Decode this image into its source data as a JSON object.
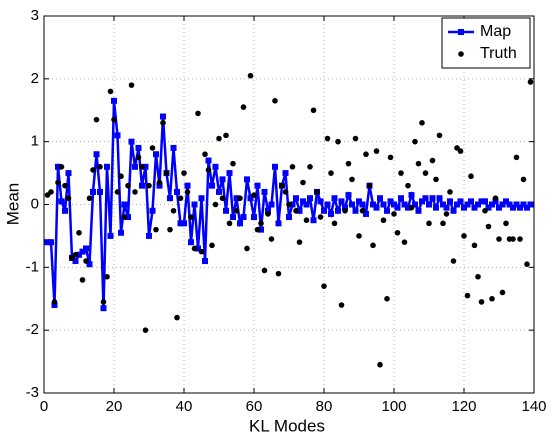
{
  "chart_data": {
    "type": "line",
    "xlabel": "KL Modes",
    "ylabel": "Mean",
    "x": [
      1,
      2,
      3,
      4,
      5,
      6,
      7,
      8,
      9,
      10,
      11,
      12,
      13,
      14,
      15,
      16,
      17,
      18,
      19,
      20,
      21,
      22,
      23,
      24,
      25,
      26,
      27,
      28,
      29,
      30,
      31,
      32,
      33,
      34,
      35,
      36,
      37,
      38,
      39,
      40,
      41,
      42,
      43,
      44,
      45,
      46,
      47,
      48,
      49,
      50,
      51,
      52,
      53,
      54,
      55,
      56,
      57,
      58,
      59,
      60,
      61,
      62,
      63,
      64,
      65,
      66,
      67,
      68,
      69,
      70,
      71,
      72,
      73,
      74,
      75,
      76,
      77,
      78,
      79,
      80,
      81,
      82,
      83,
      84,
      85,
      86,
      87,
      88,
      89,
      90,
      91,
      92,
      93,
      94,
      95,
      96,
      97,
      98,
      99,
      100,
      101,
      102,
      103,
      104,
      105,
      106,
      107,
      108,
      109,
      110,
      111,
      112,
      113,
      114,
      115,
      116,
      117,
      118,
      119,
      120,
      121,
      122,
      123,
      124,
      125,
      126,
      127,
      128,
      129,
      130,
      131,
      132,
      133,
      134,
      135,
      136,
      137,
      138,
      139
    ],
    "series": [
      {
        "name": "Map",
        "color": "#0000ff",
        "style": "line-square",
        "values": [
          -0.6,
          -0.6,
          -1.6,
          0.6,
          0.05,
          -0.1,
          0.5,
          -0.85,
          -0.9,
          -0.8,
          -0.75,
          -0.7,
          -0.95,
          0.2,
          0.8,
          0.2,
          -1.65,
          0.6,
          -0.5,
          1.65,
          1.1,
          -0.45,
          0.0,
          -0.2,
          1.0,
          0.6,
          0.9,
          0.3,
          0.6,
          -0.5,
          -0.1,
          0.8,
          0.3,
          1.4,
          0.5,
          0.1,
          0.9,
          0.2,
          -0.3,
          -0.3,
          0.3,
          -0.6,
          0.0,
          -0.7,
          0.1,
          -0.9,
          0.7,
          0.3,
          0.6,
          0.2,
          0.4,
          -0.1,
          0.5,
          -0.2,
          0.1,
          -0.3,
          -0.2,
          0.4,
          0.1,
          -0.2,
          0.3,
          -0.4,
          0.2,
          -0.1,
          0.0,
          0.6,
          -0.3,
          0.3,
          0.5,
          -0.2,
          0.0,
          0.1,
          -0.1,
          0.05,
          0.0,
          0.1,
          -0.25,
          0.2,
          0.05,
          -0.1,
          0.0,
          -0.15,
          0.1,
          -0.1,
          0.05,
          -0.05,
          0.15,
          0.0,
          -0.1,
          0.05,
          0.0,
          -0.15,
          0.3,
          0.0,
          -0.05,
          0.1,
          0.0,
          -0.1,
          0.05,
          0.0,
          -0.05,
          0.1,
          0.0,
          -0.05,
          0.15,
          0.0,
          -0.1,
          0.05,
          0.1,
          0.0,
          0.1,
          -0.05,
          0.1,
          0.0,
          -0.05,
          0.05,
          -0.1,
          0.0,
          0.05,
          -0.05,
          0.0,
          0.05,
          -0.05,
          0.0,
          0.05,
          0.05,
          -0.05,
          0.0,
          0.05,
          -0.05,
          0.0,
          0.05,
          0.0,
          -0.05,
          0.0,
          -0.05,
          0.0,
          -0.05,
          0.0
        ]
      },
      {
        "name": "Truth",
        "color": "#000000",
        "style": "dot",
        "values": [
          0.15,
          0.2,
          -1.55,
          0.35,
          0.6,
          0.3,
          0.1,
          -0.85,
          -0.8,
          -0.45,
          -1.2,
          -0.9,
          0.1,
          0.55,
          1.35,
          0.6,
          -1.55,
          -1.15,
          1.8,
          1.35,
          0.2,
          0.45,
          -0.2,
          0.3,
          1.9,
          0.2,
          0.75,
          0.6,
          -2.0,
          0.3,
          0.9,
          -0.4,
          0.35,
          1.3,
          0.5,
          -0.4,
          -0.1,
          -1.8,
          0.1,
          0.5,
          0.2,
          -0.2,
          -0.7,
          1.45,
          -0.75,
          0.8,
          0.55,
          -0.65,
          0.0,
          1.05,
          0.1,
          1.1,
          -0.3,
          0.65,
          -0.1,
          0.1,
          1.55,
          -0.7,
          2.05,
          0.15,
          -0.4,
          -0.3,
          -1.05,
          -0.15,
          -0.55,
          1.65,
          -1.1,
          0.3,
          0.2,
          0.0,
          0.6,
          -0.1,
          -0.6,
          0.35,
          -0.25,
          0.6,
          1.5,
          0.2,
          -0.2,
          -1.3,
          1.05,
          0.5,
          -0.3,
          1.0,
          -1.6,
          -0.1,
          0.65,
          0.4,
          1.05,
          -0.5,
          -0.1,
          0.8,
          0.3,
          -0.65,
          0.85,
          -2.55,
          -0.25,
          -1.5,
          0.75,
          -0.15,
          -0.45,
          0.5,
          -0.6,
          0.3,
          -0.05,
          1.0,
          0.65,
          1.3,
          0.5,
          -0.3,
          0.7,
          0.4,
          1.1,
          -0.3,
          -0.15,
          0.2,
          -0.9,
          0.9,
          0.85,
          -0.5,
          -1.45,
          0.45,
          -0.65,
          -1.15,
          -1.55,
          -0.1,
          -0.35,
          -1.5,
          0.1,
          -0.55,
          -1.4,
          -0.3,
          -0.55,
          -0.55,
          0.75,
          -0.55,
          0.4,
          -0.95,
          1.95
        ]
      }
    ],
    "xlim": [
      0,
      140
    ],
    "xticks": [
      0,
      20,
      40,
      60,
      80,
      100,
      120,
      140
    ],
    "ylim": [
      -3,
      3
    ],
    "yticks": [
      -3,
      -2,
      -1,
      0,
      1,
      2,
      3
    ],
    "grid": true,
    "legend": "northeast"
  }
}
